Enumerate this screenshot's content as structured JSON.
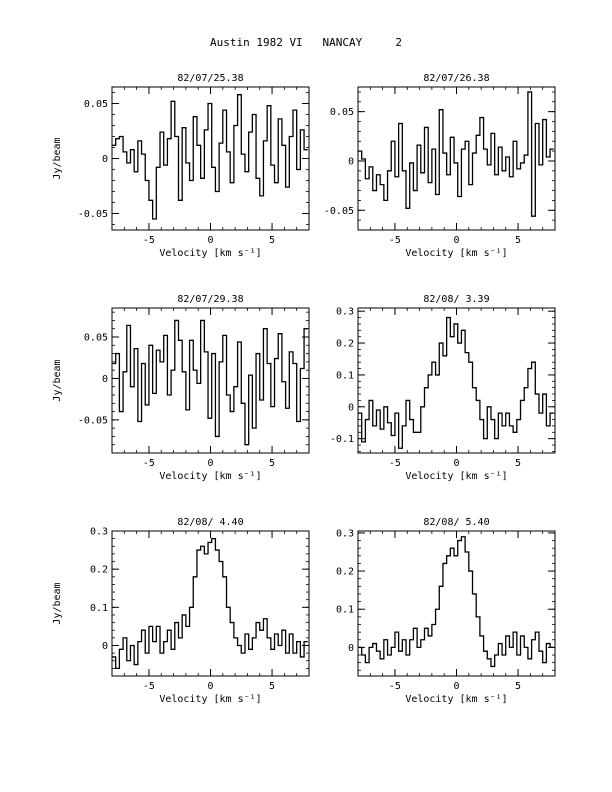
{
  "page_title": "Austin 1982 VI   NANCAY     2",
  "chart_data": [
    {
      "type": "line",
      "title": "82/07/25.38",
      "xlabel": "Velocity [km s⁻¹]",
      "ylabel": "Jy/beam",
      "xlim": [
        -8,
        8
      ],
      "ylim": [
        -0.065,
        0.065
      ],
      "xticks": [
        -5,
        0,
        5
      ],
      "xtick_labels": [
        "-5",
        "0",
        "5"
      ],
      "yticks": [
        -0.05,
        0,
        0.05
      ],
      "ytick_labels": [
        "-0.05",
        "0",
        "0.05"
      ],
      "step": true,
      "x": [
        -8,
        -7.7,
        -7.4,
        -7.1,
        -6.8,
        -6.5,
        -6.2,
        -5.9,
        -5.6,
        -5.3,
        -5,
        -4.7,
        -4.4,
        -4.1,
        -3.8,
        -3.5,
        -3.2,
        -2.9,
        -2.6,
        -2.3,
        -2,
        -1.7,
        -1.4,
        -1.1,
        -0.8,
        -0.5,
        -0.2,
        0.1,
        0.4,
        0.7,
        1,
        1.3,
        1.6,
        1.9,
        2.2,
        2.5,
        2.8,
        3.1,
        3.4,
        3.7,
        4,
        4.3,
        4.6,
        4.9,
        5.2,
        5.5,
        5.8,
        6.1,
        6.4,
        6.7,
        7,
        7.3,
        7.6
      ],
      "y": [
        0.012,
        0.018,
        0.02,
        0.006,
        -0.004,
        0.008,
        -0.012,
        0.016,
        0.004,
        -0.02,
        -0.038,
        -0.055,
        -0.008,
        0.024,
        -0.006,
        0.018,
        0.052,
        0.02,
        -0.038,
        0.028,
        -0.004,
        -0.02,
        0.038,
        0.012,
        -0.018,
        0.026,
        0.05,
        -0.008,
        -0.03,
        0.014,
        0.044,
        0.006,
        -0.022,
        0.03,
        0.058,
        0.004,
        -0.012,
        0.024,
        0.04,
        -0.018,
        -0.034,
        0.016,
        0.048,
        -0.006,
        -0.022,
        0.036,
        0.012,
        -0.026,
        0.02,
        0.044,
        -0.01,
        0.026,
        0.008
      ]
    },
    {
      "type": "line",
      "title": "82/07/26.38",
      "xlabel": "Velocity [km s⁻¹]",
      "ylabel": "",
      "xlim": [
        -8,
        8
      ],
      "ylim": [
        -0.07,
        0.075
      ],
      "xticks": [
        -5,
        0,
        5
      ],
      "xtick_labels": [
        "-5",
        "0",
        "5"
      ],
      "yticks": [
        -0.05,
        0,
        0.05
      ],
      "ytick_labels": [
        "-0.05",
        "0",
        "0.05"
      ],
      "step": true,
      "x": [
        -8,
        -7.7,
        -7.4,
        -7.1,
        -6.8,
        -6.5,
        -6.2,
        -5.9,
        -5.6,
        -5.3,
        -5,
        -4.7,
        -4.4,
        -4.1,
        -3.8,
        -3.5,
        -3.2,
        -2.9,
        -2.6,
        -2.3,
        -2,
        -1.7,
        -1.4,
        -1.1,
        -0.8,
        -0.5,
        -0.2,
        0.1,
        0.4,
        0.7,
        1,
        1.3,
        1.6,
        1.9,
        2.2,
        2.5,
        2.8,
        3.1,
        3.4,
        3.7,
        4,
        4.3,
        4.6,
        4.9,
        5.2,
        5.5,
        5.8,
        6.1,
        6.4,
        6.7,
        7,
        7.3,
        7.6
      ],
      "y": [
        0.01,
        0.002,
        -0.018,
        -0.006,
        -0.03,
        -0.014,
        -0.024,
        -0.04,
        -0.01,
        0.02,
        -0.016,
        0.038,
        -0.01,
        -0.048,
        -0.002,
        -0.03,
        0.016,
        -0.012,
        0.034,
        -0.022,
        0.012,
        -0.034,
        0.052,
        0.008,
        -0.014,
        0.024,
        -0.002,
        -0.036,
        0.012,
        0.02,
        -0.024,
        0.008,
        0.026,
        0.044,
        0.012,
        -0.004,
        0.028,
        -0.014,
        0.014,
        -0.01,
        0.004,
        -0.016,
        0.02,
        -0.008,
        -0.002,
        0.006,
        0.07,
        -0.056,
        0.038,
        -0.004,
        0.042,
        0.004,
        0.012
      ]
    },
    {
      "type": "line",
      "title": "82/07/29.38",
      "xlabel": "Velocity [km s⁻¹]",
      "ylabel": "Jy/beam",
      "xlim": [
        -8,
        8
      ],
      "ylim": [
        -0.09,
        0.085
      ],
      "xticks": [
        -5,
        0,
        5
      ],
      "xtick_labels": [
        "-5",
        "0",
        "5"
      ],
      "yticks": [
        -0.05,
        0,
        0.05
      ],
      "ytick_labels": [
        "-0.05",
        "0",
        "0.05"
      ],
      "step": true,
      "x": [
        -8,
        -7.7,
        -7.4,
        -7.1,
        -6.8,
        -6.5,
        -6.2,
        -5.9,
        -5.6,
        -5.3,
        -5,
        -4.7,
        -4.4,
        -4.1,
        -3.8,
        -3.5,
        -3.2,
        -2.9,
        -2.6,
        -2.3,
        -2,
        -1.7,
        -1.4,
        -1.1,
        -0.8,
        -0.5,
        -0.2,
        0.1,
        0.4,
        0.7,
        1,
        1.3,
        1.6,
        1.9,
        2.2,
        2.5,
        2.8,
        3.1,
        3.4,
        3.7,
        4,
        4.3,
        4.6,
        4.9,
        5.2,
        5.5,
        5.8,
        6.1,
        6.4,
        6.7,
        7,
        7.3,
        7.6
      ],
      "y": [
        0.018,
        0.03,
        -0.04,
        0.008,
        0.064,
        -0.01,
        0.036,
        -0.052,
        0.018,
        -0.032,
        0.04,
        -0.018,
        0.034,
        0.02,
        0.052,
        -0.02,
        0.01,
        0.07,
        0.046,
        0.008,
        -0.038,
        0.046,
        0.01,
        -0.006,
        0.07,
        0.032,
        -0.048,
        0.03,
        -0.07,
        0.02,
        0.052,
        -0.02,
        -0.04,
        -0.01,
        0.044,
        -0.03,
        -0.08,
        0.004,
        -0.06,
        0.03,
        -0.026,
        0.06,
        0.018,
        -0.034,
        0.024,
        0.054,
        -0.004,
        -0.036,
        0.032,
        0.018,
        -0.052,
        0.012,
        0.06
      ]
    },
    {
      "type": "line",
      "title": "82/08/ 3.39",
      "xlabel": "Velocity [km s⁻¹]",
      "ylabel": "",
      "xlim": [
        -8,
        8
      ],
      "ylim": [
        -0.145,
        0.31
      ],
      "xticks": [
        -5,
        0,
        5
      ],
      "xtick_labels": [
        "-5",
        "0",
        "5"
      ],
      "yticks": [
        -0.1,
        0,
        0.1,
        0.2,
        0.3
      ],
      "ytick_labels": [
        "-0.1",
        "0",
        "0.1",
        "0.2",
        "0.3"
      ],
      "step": true,
      "x": [
        -8,
        -7.7,
        -7.4,
        -7.1,
        -6.8,
        -6.5,
        -6.2,
        -5.9,
        -5.6,
        -5.3,
        -5,
        -4.7,
        -4.4,
        -4.1,
        -3.8,
        -3.5,
        -3.2,
        -2.9,
        -2.6,
        -2.3,
        -2,
        -1.7,
        -1.4,
        -1.1,
        -0.8,
        -0.5,
        -0.2,
        0.1,
        0.4,
        0.7,
        1,
        1.3,
        1.6,
        1.9,
        2.2,
        2.5,
        2.8,
        3.1,
        3.4,
        3.7,
        4,
        4.3,
        4.6,
        4.9,
        5.2,
        5.5,
        5.8,
        6.1,
        6.4,
        6.7,
        7,
        7.3,
        7.6
      ],
      "y": [
        -0.02,
        -0.11,
        -0.04,
        0.02,
        -0.06,
        -0.01,
        -0.07,
        0.0,
        -0.05,
        -0.09,
        -0.02,
        -0.13,
        -0.06,
        0.02,
        -0.04,
        -0.08,
        -0.08,
        0.0,
        0.06,
        0.1,
        0.14,
        0.1,
        0.2,
        0.16,
        0.28,
        0.22,
        0.26,
        0.2,
        0.24,
        0.17,
        0.14,
        0.06,
        0.02,
        -0.04,
        -0.1,
        0.0,
        -0.04,
        -0.1,
        -0.02,
        -0.06,
        -0.02,
        -0.06,
        -0.08,
        -0.04,
        0.02,
        0.06,
        0.12,
        0.14,
        0.04,
        -0.02,
        0.04,
        -0.06,
        -0.02
      ]
    },
    {
      "type": "line",
      "title": "82/08/ 4.40",
      "xlabel": "Velocity [km s⁻¹]",
      "ylabel": "Jy/beam",
      "xlim": [
        -8,
        8
      ],
      "ylim": [
        -0.08,
        0.3
      ],
      "xticks": [
        -5,
        0,
        5
      ],
      "xtick_labels": [
        "-5",
        "0",
        "5"
      ],
      "yticks": [
        0,
        0.1,
        0.2,
        0.3
      ],
      "ytick_labels": [
        "0",
        "0.1",
        "0.2",
        "0.3"
      ],
      "step": true,
      "x": [
        -8,
        -7.7,
        -7.4,
        -7.1,
        -6.8,
        -6.5,
        -6.2,
        -5.9,
        -5.6,
        -5.3,
        -5,
        -4.7,
        -4.4,
        -4.1,
        -3.8,
        -3.5,
        -3.2,
        -2.9,
        -2.6,
        -2.3,
        -2,
        -1.7,
        -1.4,
        -1.1,
        -0.8,
        -0.5,
        -0.2,
        0.1,
        0.4,
        0.7,
        1,
        1.3,
        1.6,
        1.9,
        2.2,
        2.5,
        2.8,
        3.1,
        3.4,
        3.7,
        4,
        4.3,
        4.6,
        4.9,
        5.2,
        5.5,
        5.8,
        6.1,
        6.4,
        6.7,
        7,
        7.3,
        7.6
      ],
      "y": [
        -0.03,
        -0.06,
        -0.01,
        0.02,
        -0.04,
        0.0,
        -0.05,
        0.01,
        0.04,
        -0.02,
        0.05,
        0.01,
        0.05,
        -0.02,
        0.01,
        0.04,
        -0.01,
        0.06,
        0.02,
        0.08,
        0.05,
        0.1,
        0.18,
        0.25,
        0.26,
        0.24,
        0.27,
        0.28,
        0.25,
        0.22,
        0.18,
        0.1,
        0.06,
        0.02,
        0.0,
        -0.02,
        0.03,
        -0.01,
        0.02,
        0.06,
        0.04,
        0.07,
        0.02,
        -0.01,
        0.03,
        0.0,
        0.04,
        -0.02,
        0.03,
        -0.02,
        0.01,
        -0.03,
        0.01
      ]
    },
    {
      "type": "line",
      "title": "82/08/ 5.40",
      "xlabel": "Velocity [km s⁻¹]",
      "ylabel": "",
      "xlim": [
        -8,
        8
      ],
      "ylim": [
        -0.075,
        0.305
      ],
      "xticks": [
        -5,
        0,
        5
      ],
      "xtick_labels": [
        "-5",
        "0",
        "5"
      ],
      "yticks": [
        0,
        0.1,
        0.2,
        0.3
      ],
      "ytick_labels": [
        "0",
        "0.1",
        "0.2",
        "0.3"
      ],
      "step": true,
      "x": [
        -8,
        -7.7,
        -7.4,
        -7.1,
        -6.8,
        -6.5,
        -6.2,
        -5.9,
        -5.6,
        -5.3,
        -5,
        -4.7,
        -4.4,
        -4.1,
        -3.8,
        -3.5,
        -3.2,
        -2.9,
        -2.6,
        -2.3,
        -2,
        -1.7,
        -1.4,
        -1.1,
        -0.8,
        -0.5,
        -0.2,
        0.1,
        0.4,
        0.7,
        1,
        1.3,
        1.6,
        1.9,
        2.2,
        2.5,
        2.8,
        3.1,
        3.4,
        3.7,
        4,
        4.3,
        4.6,
        4.9,
        5.2,
        5.5,
        5.8,
        6.1,
        6.4,
        6.7,
        7,
        7.3,
        7.6
      ],
      "y": [
        0.0,
        -0.02,
        -0.04,
        0.0,
        0.01,
        -0.01,
        -0.03,
        0.02,
        -0.02,
        0.0,
        0.04,
        -0.01,
        0.02,
        -0.02,
        0.02,
        0.05,
        0.0,
        0.02,
        0.05,
        0.03,
        0.06,
        0.1,
        0.16,
        0.22,
        0.24,
        0.26,
        0.24,
        0.28,
        0.29,
        0.25,
        0.2,
        0.14,
        0.08,
        0.03,
        -0.01,
        -0.03,
        -0.05,
        -0.02,
        0.01,
        -0.02,
        0.03,
        0.0,
        0.04,
        -0.02,
        0.03,
        0.0,
        -0.03,
        0.02,
        0.04,
        -0.01,
        -0.04,
        0.01,
        0.0
      ]
    }
  ]
}
